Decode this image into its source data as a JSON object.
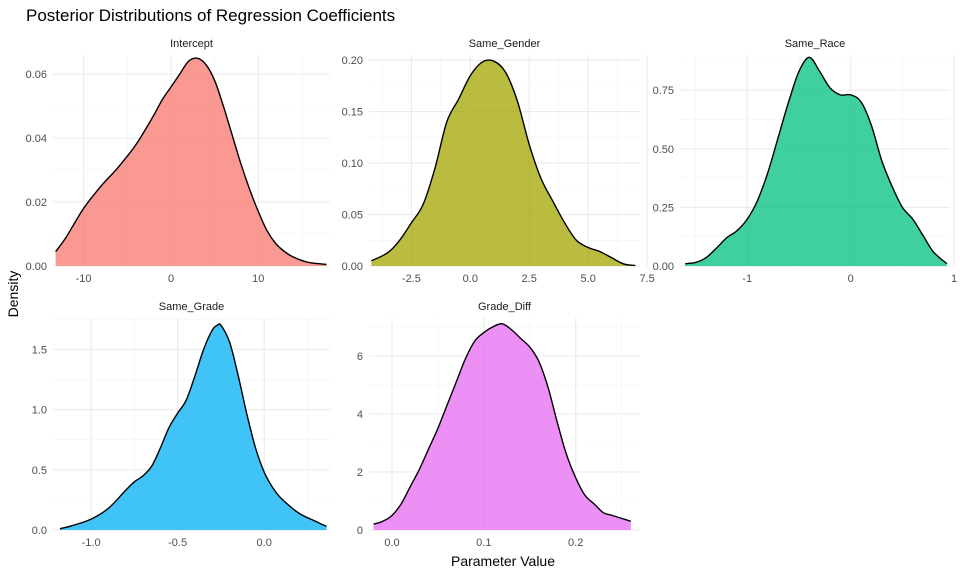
{
  "chart_data": {
    "type": "area",
    "title": "Posterior Distributions of Regression Coefficients",
    "xlabel": "Parameter Value",
    "ylabel": "Density",
    "grid": true,
    "legend": "none",
    "panels": [
      {
        "name": "Intercept",
        "color": "#F8766D",
        "xlim": [
          -13.5,
          18.2
        ],
        "ylim": [
          0,
          0.066
        ],
        "x_ticks": [
          -10,
          0,
          10
        ],
        "x_tick_labels": [
          "-10",
          "0",
          "10"
        ],
        "y_ticks": [
          0.0,
          0.02,
          0.04,
          0.06
        ],
        "y_tick_labels": [
          "0.00",
          "0.02",
          "0.04",
          "0.06"
        ],
        "x": [
          -13.2,
          -12,
          -10,
          -8,
          -6,
          -4,
          -2,
          -1,
          0,
          1,
          2,
          3,
          4,
          5,
          6,
          7,
          8,
          9,
          10,
          11,
          12,
          13,
          14,
          15,
          16,
          17.8
        ],
        "y": [
          0.0045,
          0.009,
          0.018,
          0.025,
          0.031,
          0.038,
          0.047,
          0.052,
          0.056,
          0.06,
          0.064,
          0.065,
          0.063,
          0.058,
          0.05,
          0.041,
          0.032,
          0.024,
          0.017,
          0.011,
          0.007,
          0.0045,
          0.0028,
          0.0017,
          0.001,
          0.0005
        ]
      },
      {
        "name": "Same_Gender",
        "color": "#A3A500",
        "xlim": [
          -4.3,
          7.2
        ],
        "ylim": [
          0,
          0.205
        ],
        "x_ticks": [
          -2.5,
          0,
          2.5,
          5,
          7.5
        ],
        "x_tick_labels": [
          "-2.5",
          "0.0",
          "2.5",
          "5.0",
          "7.5"
        ],
        "y_ticks": [
          0.0,
          0.05,
          0.1,
          0.15,
          0.2
        ],
        "y_tick_labels": [
          "0.00",
          "0.05",
          "0.10",
          "0.15",
          "0.20"
        ],
        "x": [
          -4.2,
          -3.5,
          -3,
          -2.5,
          -2,
          -1.5,
          -1,
          -0.5,
          0,
          0.5,
          1,
          1.5,
          2,
          2.5,
          3,
          3.5,
          4,
          4.5,
          5,
          5.5,
          6,
          6.5,
          7
        ],
        "y": [
          0.005,
          0.013,
          0.025,
          0.042,
          0.06,
          0.095,
          0.14,
          0.162,
          0.185,
          0.198,
          0.199,
          0.188,
          0.16,
          0.118,
          0.085,
          0.063,
          0.042,
          0.025,
          0.018,
          0.014,
          0.008,
          0.002,
          0.0005
        ]
      },
      {
        "name": "Same_Race",
        "color": "#00BF7D",
        "xlim": [
          -1.65,
          0.96
        ],
        "ylim": [
          0,
          0.9
        ],
        "x_ticks": [
          -1,
          0,
          1
        ],
        "x_tick_labels": [
          "-1",
          "0",
          "1"
        ],
        "y_ticks": [
          0.0,
          0.25,
          0.5,
          0.75
        ],
        "y_tick_labels": [
          "0.00",
          "0.25",
          "0.50",
          "0.75"
        ],
        "x": [
          -1.6,
          -1.5,
          -1.4,
          -1.3,
          -1.2,
          -1.1,
          -1.0,
          -0.9,
          -0.8,
          -0.7,
          -0.6,
          -0.5,
          -0.4,
          -0.3,
          -0.2,
          -0.1,
          0,
          0.1,
          0.2,
          0.3,
          0.4,
          0.5,
          0.6,
          0.7,
          0.8,
          0.93
        ],
        "y": [
          0.01,
          0.015,
          0.035,
          0.075,
          0.12,
          0.15,
          0.2,
          0.28,
          0.4,
          0.55,
          0.7,
          0.83,
          0.89,
          0.83,
          0.76,
          0.73,
          0.73,
          0.7,
          0.6,
          0.45,
          0.34,
          0.25,
          0.2,
          0.13,
          0.06,
          0.01
        ]
      },
      {
        "name": "Same_Grade",
        "color": "#00B0F6",
        "xlim": [
          -1.22,
          0.38
        ],
        "ylim": [
          0,
          1.76
        ],
        "x_ticks": [
          -1.0,
          -0.5,
          0.0
        ],
        "x_tick_labels": [
          "-1.0",
          "-0.5",
          "0.0"
        ],
        "y_ticks": [
          0.0,
          0.5,
          1.0,
          1.5
        ],
        "y_tick_labels": [
          "0.0",
          "0.5",
          "1.0",
          "1.5"
        ],
        "x": [
          -1.18,
          -1.1,
          -1.0,
          -0.9,
          -0.8,
          -0.75,
          -0.7,
          -0.65,
          -0.6,
          -0.55,
          -0.5,
          -0.45,
          -0.4,
          -0.35,
          -0.3,
          -0.27,
          -0.25,
          -0.2,
          -0.15,
          -0.1,
          -0.05,
          0,
          0.05,
          0.1,
          0.2,
          0.3,
          0.36
        ],
        "y": [
          0.01,
          0.04,
          0.09,
          0.18,
          0.33,
          0.4,
          0.45,
          0.53,
          0.68,
          0.85,
          0.97,
          1.08,
          1.28,
          1.5,
          1.66,
          1.7,
          1.7,
          1.56,
          1.28,
          0.96,
          0.68,
          0.48,
          0.35,
          0.26,
          0.14,
          0.07,
          0.03
        ]
      },
      {
        "name": "Grade_Diff",
        "color": "#E76BF3",
        "xlim": [
          -0.025,
          0.27
        ],
        "ylim": [
          0,
          7.3
        ],
        "x_ticks": [
          0.0,
          0.1,
          0.2
        ],
        "x_tick_labels": [
          "0.0",
          "0.1",
          "0.2"
        ],
        "y_ticks": [
          0,
          2,
          4,
          6
        ],
        "y_tick_labels": [
          "0",
          "2",
          "4",
          "6"
        ],
        "x": [
          -0.02,
          -0.01,
          0,
          0.01,
          0.02,
          0.03,
          0.04,
          0.05,
          0.06,
          0.07,
          0.08,
          0.09,
          0.1,
          0.11,
          0.12,
          0.13,
          0.14,
          0.15,
          0.16,
          0.17,
          0.18,
          0.19,
          0.2,
          0.21,
          0.22,
          0.23,
          0.24,
          0.25,
          0.26
        ],
        "y": [
          0.2,
          0.3,
          0.5,
          0.9,
          1.5,
          2.1,
          2.8,
          3.5,
          4.3,
          5.1,
          5.9,
          6.5,
          6.8,
          7.0,
          7.1,
          6.9,
          6.6,
          6.3,
          5.8,
          4.9,
          3.7,
          2.6,
          1.8,
          1.2,
          0.9,
          0.6,
          0.5,
          0.4,
          0.3
        ]
      }
    ]
  }
}
